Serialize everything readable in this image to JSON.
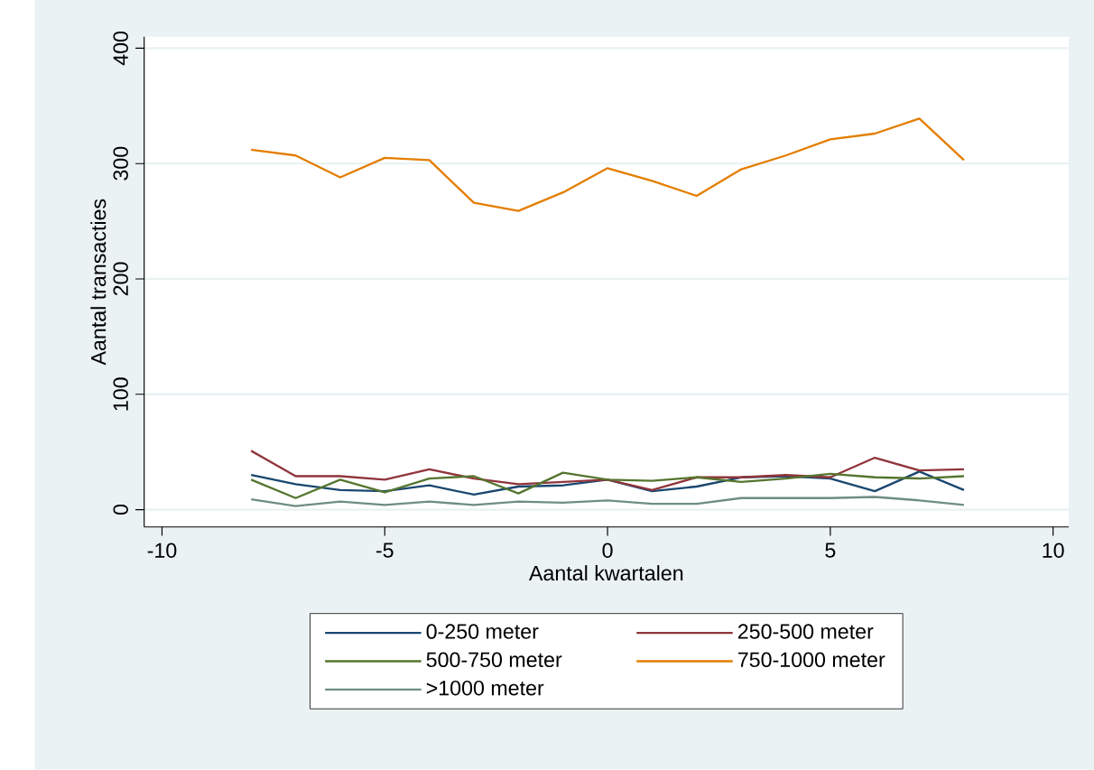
{
  "chart_data": {
    "type": "line",
    "xlabel": "Aantal kwartalen",
    "ylabel": "Aantal transacties",
    "x": [
      -8,
      -7,
      -6,
      -5,
      -4,
      -3,
      -2,
      -1,
      0,
      1,
      2,
      3,
      4,
      5,
      6,
      7,
      8
    ],
    "series": [
      {
        "name": "0-250 meter",
        "color": "#1a476f",
        "values": [
          30,
          22,
          17,
          16,
          21,
          13,
          20,
          21,
          26,
          16,
          20,
          28,
          29,
          27,
          16,
          33,
          17
        ]
      },
      {
        "name": "250-500 meter",
        "color": "#90353b",
        "values": [
          51,
          29,
          29,
          26,
          35,
          27,
          22,
          24,
          26,
          17,
          28,
          28,
          30,
          28,
          45,
          34,
          35
        ]
      },
      {
        "name": "500-750 meter",
        "color": "#55752f",
        "values": [
          26,
          10,
          26,
          15,
          27,
          29,
          14,
          32,
          26,
          25,
          28,
          24,
          27,
          31,
          28,
          27,
          29
        ]
      },
      {
        "name": "750-1000 meter",
        "color": "#e37e00",
        "values": [
          312,
          307,
          288,
          305,
          303,
          266,
          259,
          275,
          296,
          285,
          272,
          295,
          307,
          321,
          326,
          339,
          303
        ]
      },
      {
        "name": ">1000 meter",
        "color": "#6e8e84",
        "values": [
          9,
          3,
          7,
          4,
          7,
          4,
          7,
          6,
          8,
          5,
          5,
          10,
          10,
          10,
          11,
          8,
          4
        ]
      }
    ],
    "xlim": [
      -10.4,
      10.35
    ],
    "ylim": [
      -15,
      410
    ],
    "xticks": [
      -10,
      -5,
      0,
      5,
      10
    ],
    "yticks": [
      0,
      100,
      200,
      300,
      400
    ],
    "grid": "y",
    "legend": "bottom",
    "marker": "none",
    "line_style": "solid"
  }
}
